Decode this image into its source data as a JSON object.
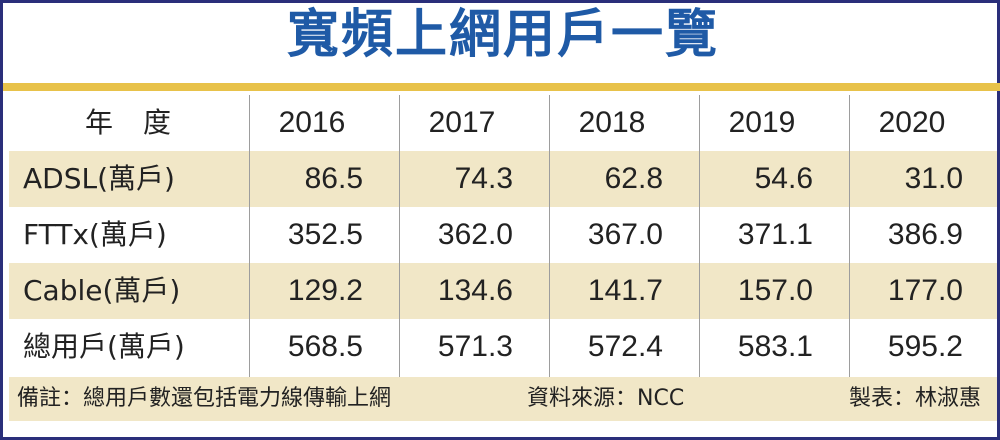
{
  "title": "寬頻上網用戶一覽",
  "table": {
    "header": {
      "label": "年度",
      "years": [
        "2016",
        "2017",
        "2018",
        "2019",
        "2020"
      ]
    },
    "rows": [
      {
        "label": "ADSL(萬戶)",
        "values": [
          "86.5",
          "74.3",
          "62.8",
          "54.6",
          "31.0"
        ]
      },
      {
        "label": "FTTx(萬戶)",
        "values": [
          "352.5",
          "362.0",
          "367.0",
          "371.1",
          "386.9"
        ]
      },
      {
        "label": "Cable(萬戶)",
        "values": [
          "129.2",
          "134.6",
          "141.7",
          "157.0",
          "177.0"
        ]
      },
      {
        "label": "總用戶(萬戶)",
        "values": [
          "568.5",
          "571.3",
          "572.4",
          "583.1",
          "595.2"
        ]
      }
    ]
  },
  "footer": {
    "note": "備註：總用戶數還包括電力線傳輸上網",
    "source": "資料來源：NCC",
    "maker": "製表：林淑惠"
  },
  "colors": {
    "title": "#1f5aa6",
    "accent_rule": "#e8c24a",
    "row_shade": "#f1e7c7",
    "border": "#2a2f7a"
  }
}
